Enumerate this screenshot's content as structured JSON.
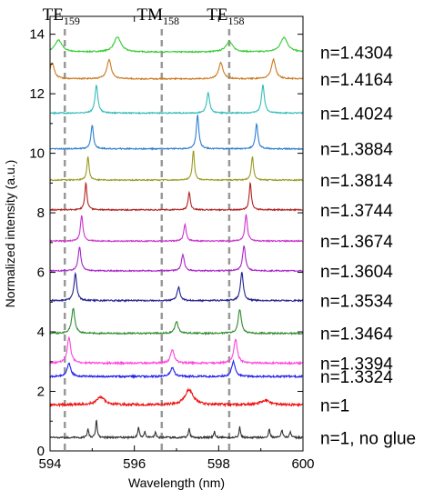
{
  "chart_data": {
    "type": "line",
    "xlabel": "Wavelength (nm)",
    "ylabel": "Normalized intensity (a.u.)",
    "xlim": [
      594,
      600
    ],
    "ylim": [
      0,
      14.6
    ],
    "xticks": [
      594,
      596,
      598,
      600
    ],
    "xtick_labels": [
      "594",
      "596",
      "598",
      "600"
    ],
    "yticks": [
      0,
      2,
      4,
      6,
      8,
      10,
      12,
      14
    ],
    "ytick_labels": [
      "0",
      "2",
      "4",
      "6",
      "8",
      "10",
      "12",
      "14"
    ],
    "grid": false,
    "mode_markers": [
      {
        "base": "TE",
        "sub": "159",
        "x": 594.35
      },
      {
        "base": "TM",
        "sub": "158",
        "x": 596.65
      },
      {
        "base": "TE",
        "sub": "158",
        "x": 598.25
      }
    ],
    "series": [
      {
        "label": "n=1.4304",
        "color": "#33cc33",
        "offset": 13.4,
        "peaks": [
          [
            594.2,
            0.4
          ],
          [
            595.6,
            0.5
          ],
          [
            598.25,
            0.35
          ],
          [
            599.55,
            0.5
          ]
        ],
        "width": 0.1,
        "noise": 0.02
      },
      {
        "label": "n=1.4164",
        "color": "#cc7a1f",
        "offset": 12.5,
        "peaks": [
          [
            594.05,
            0.55
          ],
          [
            595.4,
            0.65
          ],
          [
            598.05,
            0.55
          ],
          [
            599.3,
            0.65
          ]
        ],
        "width": 0.06,
        "noise": 0.02
      },
      {
        "label": "n=1.4024",
        "color": "#33bbbb",
        "offset": 11.35,
        "peaks": [
          [
            595.1,
            0.95
          ],
          [
            597.75,
            0.7
          ],
          [
            599.05,
            0.95
          ]
        ],
        "width": 0.04,
        "noise": 0.02
      },
      {
        "label": "n=1.3884",
        "color": "#2f7fd0",
        "offset": 10.15,
        "peaks": [
          [
            595.0,
            0.8
          ],
          [
            597.5,
            1.15
          ],
          [
            598.9,
            0.85
          ]
        ],
        "width": 0.035,
        "noise": 0.02
      },
      {
        "label": "n=1.3814",
        "color": "#9a9a20",
        "offset": 9.1,
        "peaks": [
          [
            594.9,
            0.8
          ],
          [
            597.4,
            1.0
          ],
          [
            598.8,
            0.8
          ]
        ],
        "width": 0.03,
        "noise": 0.02
      },
      {
        "label": "n=1.3744",
        "color": "#b22222",
        "offset": 8.1,
        "peaks": [
          [
            594.85,
            0.9
          ],
          [
            597.3,
            0.6
          ],
          [
            598.75,
            0.9
          ]
        ],
        "width": 0.03,
        "noise": 0.02
      },
      {
        "label": "n=1.3674",
        "color": "#cc33cc",
        "offset": 7.05,
        "peaks": [
          [
            594.75,
            0.85
          ],
          [
            597.2,
            0.55
          ],
          [
            598.65,
            0.9
          ]
        ],
        "width": 0.035,
        "noise": 0.02
      },
      {
        "label": "n=1.3604",
        "color": "#aa22cc",
        "offset": 6.05,
        "peaks": [
          [
            594.7,
            0.8
          ],
          [
            597.15,
            0.55
          ],
          [
            598.6,
            0.85
          ]
        ],
        "width": 0.04,
        "noise": 0.02
      },
      {
        "label": "n=1.3534",
        "color": "#22228f",
        "offset": 5.05,
        "peaks": [
          [
            594.6,
            0.9
          ],
          [
            597.05,
            0.45
          ],
          [
            598.55,
            0.95
          ]
        ],
        "width": 0.04,
        "noise": 0.025
      },
      {
        "label": "n=1.3464",
        "color": "#2e8b2e",
        "offset": 3.95,
        "peaks": [
          [
            594.55,
            0.85
          ],
          [
            597.0,
            0.4
          ],
          [
            598.5,
            0.8
          ]
        ],
        "width": 0.045,
        "noise": 0.025
      },
      {
        "label": "n=1.3394",
        "color": "#ff44dd",
        "offset": 2.95,
        "peaks": [
          [
            594.45,
            0.85
          ],
          [
            596.9,
            0.45
          ],
          [
            598.4,
            0.8
          ]
        ],
        "width": 0.05,
        "noise": 0.03
      },
      {
        "label": "n=1.3324",
        "color": "#2222ee",
        "offset": 2.5,
        "peaks": [
          [
            594.45,
            0.45
          ],
          [
            596.9,
            0.3
          ],
          [
            598.35,
            0.5
          ]
        ],
        "width": 0.05,
        "noise": 0.03
      },
      {
        "label": "n=1",
        "color": "#ee1111",
        "offset": 1.55,
        "peaks": [
          [
            595.2,
            0.25
          ],
          [
            597.3,
            0.5
          ],
          [
            599.1,
            0.15
          ]
        ],
        "width": 0.12,
        "noise": 0.04
      },
      {
        "label": "n=1, no glue",
        "color": "#333333",
        "offset": 0.45,
        "peaks": [
          [
            594.9,
            0.3
          ],
          [
            595.1,
            0.6
          ],
          [
            596.1,
            0.35
          ],
          [
            596.25,
            0.2
          ],
          [
            596.5,
            0.2
          ],
          [
            597.3,
            0.3
          ],
          [
            597.9,
            0.2
          ],
          [
            598.5,
            0.35
          ],
          [
            599.2,
            0.3
          ],
          [
            599.5,
            0.25
          ],
          [
            599.7,
            0.2
          ]
        ],
        "width": 0.02,
        "noise": 0.03
      }
    ]
  }
}
